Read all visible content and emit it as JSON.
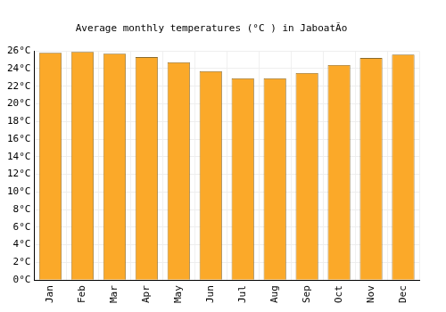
{
  "chart_data": {
    "type": "bar",
    "title": "Average monthly temperatures (°C ) in JaboatÃo",
    "categories": [
      "Jan",
      "Feb",
      "Mar",
      "Apr",
      "May",
      "Jun",
      "Jul",
      "Aug",
      "Sep",
      "Oct",
      "Nov",
      "Dec"
    ],
    "values": [
      25.8,
      25.9,
      25.7,
      25.3,
      24.7,
      23.7,
      22.9,
      22.9,
      23.5,
      24.4,
      25.2,
      25.6
    ],
    "color": "#fba929",
    "ylim": [
      0,
      26
    ],
    "yticks": [
      {
        "value": 0,
        "label": "0°C"
      },
      {
        "value": 2,
        "label": "2°C"
      },
      {
        "value": 4,
        "label": "4°C"
      },
      {
        "value": 6,
        "label": "6°C"
      },
      {
        "value": 8,
        "label": "8°C"
      },
      {
        "value": 10,
        "label": "10°C"
      },
      {
        "value": 12,
        "label": "12°C"
      },
      {
        "value": 14,
        "label": "14°C"
      },
      {
        "value": 16,
        "label": "16°C"
      },
      {
        "value": 18,
        "label": "18°C"
      },
      {
        "value": 20,
        "label": "20°C"
      },
      {
        "value": 22,
        "label": "22°C"
      },
      {
        "value": 24,
        "label": "24°C"
      },
      {
        "value": 26,
        "label": "26°C"
      }
    ],
    "grid": true
  }
}
